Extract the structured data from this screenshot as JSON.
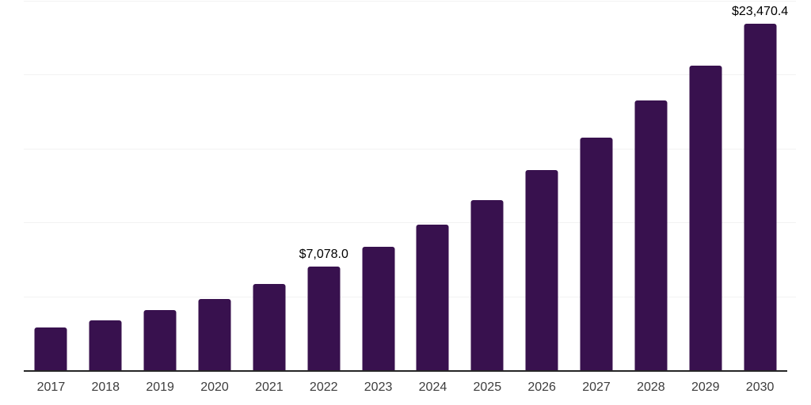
{
  "chart_data": {
    "type": "bar",
    "title": "",
    "xlabel": "",
    "ylabel": "",
    "categories": [
      "2017",
      "2018",
      "2019",
      "2020",
      "2021",
      "2022",
      "2023",
      "2024",
      "2025",
      "2026",
      "2027",
      "2028",
      "2029",
      "2030"
    ],
    "values": [
      2960,
      3440,
      4140,
      4890,
      5900,
      7078.0,
      8410,
      9900,
      11560,
      13590,
      15780,
      18260,
      20620,
      23470.4
    ],
    "data_labels": {
      "2022": "$7,078.0",
      "2030": "$23,470.4"
    },
    "ylim": [
      0,
      25000
    ],
    "gridline_step": 5000,
    "grid": true,
    "legend": false,
    "colors": {
      "bar": "#38114E",
      "axis_line": "#262626",
      "gridline": "#f2f2f2",
      "tick_label": "#3d3d3d",
      "data_label": "#000000",
      "background": "#ffffff"
    }
  }
}
